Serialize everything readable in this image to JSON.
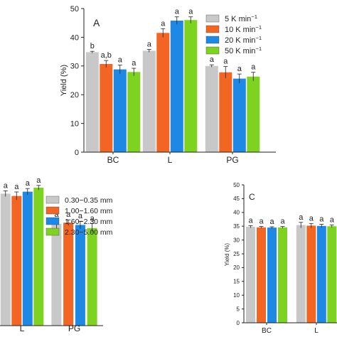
{
  "chart_data": [
    {
      "type": "bar",
      "panel_label": "A",
      "ylabel": "Yield (%)",
      "xlabel": "",
      "ylim": [
        0,
        50
      ],
      "yticks": [
        0,
        10,
        20,
        30,
        40,
        50
      ],
      "categories": [
        "BC",
        "L",
        "PG"
      ],
      "legend_position": "top-right",
      "series": [
        {
          "name": "5 K min",
          "name_sup": "−1",
          "color": "#c8c8c8",
          "values": [
            34.8,
            35.3,
            30.0
          ],
          "errors": [
            0.3,
            0.5,
            0.4
          ],
          "labels": [
            "b",
            "a",
            "a"
          ]
        },
        {
          "name": "10 K min",
          "name_sup": "−1",
          "color": "#f26522",
          "values": [
            30.7,
            41.5,
            27.8
          ],
          "errors": [
            1.2,
            1.5,
            2.0
          ],
          "labels": [
            "a,b",
            "a",
            "a"
          ]
        },
        {
          "name": "20 K min",
          "name_sup": "−1",
          "color": "#1e88e5",
          "values": [
            28.8,
            45.8,
            25.6
          ],
          "errors": [
            1.5,
            1.3,
            1.6
          ],
          "labels": [
            "a",
            "a",
            "a"
          ]
        },
        {
          "name": "50 K min",
          "name_sup": "−1",
          "color": "#7ed321",
          "values": [
            27.9,
            46.0,
            26.3
          ],
          "errors": [
            1.3,
            1.1,
            1.5
          ],
          "labels": [
            "a",
            "a",
            "a"
          ]
        }
      ]
    },
    {
      "type": "bar",
      "panel_label": "",
      "ylabel": "",
      "xlabel": "",
      "categories": [
        "L",
        "PG"
      ],
      "legend_position": "top-right",
      "series": [
        {
          "name": "0.30−0.35 mm",
          "color": "#c8c8c8",
          "values": [
            46.4,
            35.8
          ],
          "errors": [
            1.0,
            1.5
          ],
          "labels": [
            "a",
            "a"
          ]
        },
        {
          "name": "1.00−1.60 mm",
          "color": "#f26522",
          "values": [
            45.6,
            36.2
          ],
          "errors": [
            1.4,
            1.0
          ],
          "labels": [
            "a",
            "a"
          ]
        },
        {
          "name": "1.60−2.30 mm",
          "color": "#1e88e5",
          "values": [
            47.1,
            35.4
          ],
          "errors": [
            1.1,
            1.3
          ],
          "labels": [
            "a",
            "a"
          ]
        },
        {
          "name": "2.30−5.00 mm",
          "color": "#7ed321",
          "values": [
            48.5,
            34.3
          ],
          "errors": [
            0.8,
            1.6
          ],
          "labels": [
            "a",
            "a"
          ]
        }
      ]
    },
    {
      "type": "bar",
      "panel_label": "C",
      "ylabel": "Yield (%)",
      "xlabel": "",
      "ylim": [
        0,
        50
      ],
      "yticks": [
        0,
        5,
        10,
        15,
        20,
        25,
        30,
        35,
        40,
        45,
        50
      ],
      "categories": [
        "BC",
        "L"
      ],
      "series": [
        {
          "name": "",
          "color": "#c8c8c8",
          "values": [
            34.8,
            35.4
          ],
          "errors": [
            0.4,
            1.0
          ],
          "labels": [
            "a",
            "a"
          ]
        },
        {
          "name": "",
          "color": "#f26522",
          "values": [
            34.6,
            35.2
          ],
          "errors": [
            0.3,
            0.8
          ],
          "labels": [
            "a",
            "a"
          ]
        },
        {
          "name": "",
          "color": "#1e88e5",
          "values": [
            34.5,
            35.1
          ],
          "errors": [
            0.3,
            0.6
          ],
          "labels": [
            "a",
            "a"
          ]
        },
        {
          "name": "",
          "color": "#7ed321",
          "values": [
            34.6,
            35.0
          ],
          "errors": [
            0.3,
            0.5
          ],
          "labels": [
            "a",
            "a"
          ]
        }
      ]
    }
  ]
}
